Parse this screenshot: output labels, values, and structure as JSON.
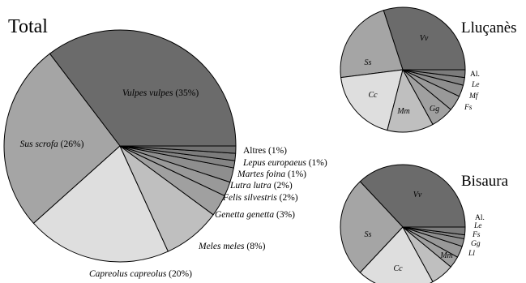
{
  "chart_data": [
    {
      "type": "pie",
      "title": "Total",
      "colors": [
        "#6b6b6b",
        "#a5a5a5",
        "#dedede",
        "#bfbfbf",
        "#a0a0a0",
        "#999999",
        "#8e8e8e",
        "#858585",
        "#7c7c7c",
        "#727272"
      ],
      "categories": [
        "Vulpes vulpes",
        "Sus scrofa",
        "Capreolus capreolus",
        "Meles meles",
        "Genetta genetta",
        "Felis silvestris",
        "Lutra lutra",
        "Martes foina",
        "Lepus europaeus",
        "Altres"
      ],
      "values": [
        35,
        26,
        20,
        8,
        3,
        2,
        2,
        1,
        1,
        1
      ],
      "value_labels": [
        "(35%)",
        "(26%)",
        "(20%)",
        "(8%)",
        "(3%)",
        "(2%)",
        "(2%)",
        "(1%)",
        "(1%)",
        "(1%)"
      ]
    },
    {
      "type": "pie",
      "title": "Lluçanès",
      "colors": [
        "#6b6b6b",
        "#a5a5a5",
        "#dedede",
        "#bfbfbf",
        "#a0a0a0",
        "#999999",
        "#8e8e8e",
        "#858585",
        "#7c7c7c",
        "#727272"
      ],
      "categories": [
        "Vv",
        "Ss",
        "Cc",
        "Mm",
        "Gg",
        "Fs",
        "Mf",
        "Le",
        "Al."
      ],
      "values": [
        30,
        22,
        19,
        12,
        6,
        4,
        3,
        2,
        2
      ]
    },
    {
      "type": "pie",
      "title": "Bisaura",
      "colors": [
        "#6b6b6b",
        "#a5a5a5",
        "#dedede",
        "#bfbfbf",
        "#a0a0a0",
        "#999999",
        "#8e8e8e",
        "#858585",
        "#7c7c7c",
        "#727272"
      ],
      "categories": [
        "Vv",
        "Ss",
        "Cc",
        "Mm",
        "Ll",
        "Gg",
        "Fs",
        "Le",
        "Al."
      ],
      "values": [
        37,
        26,
        20,
        6,
        3,
        3,
        2,
        1,
        2
      ]
    }
  ]
}
